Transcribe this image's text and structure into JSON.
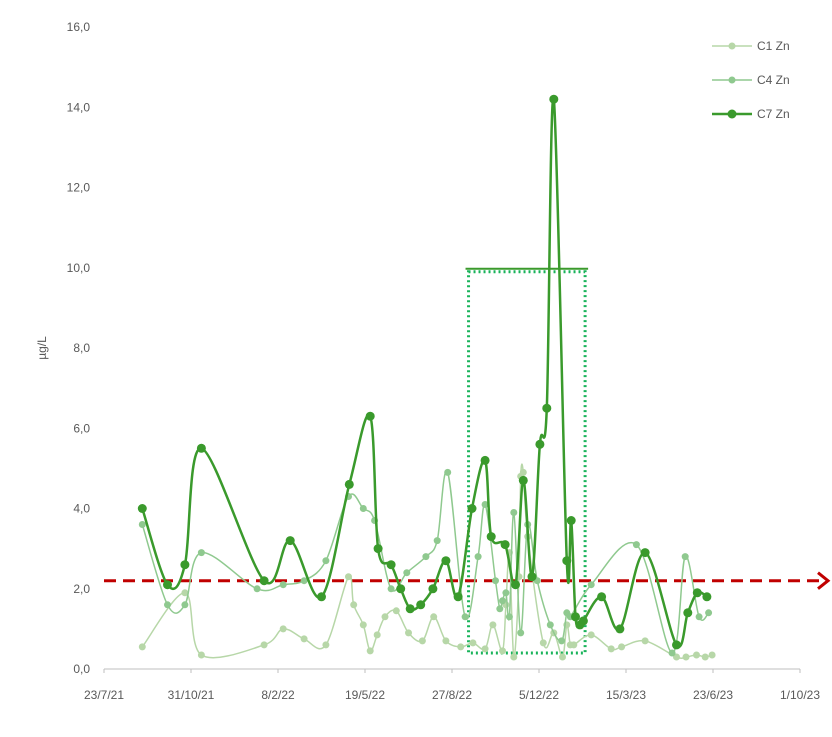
{
  "chart_data": {
    "type": "line",
    "ylabel": "µg/L",
    "ylim": [
      0,
      16
    ],
    "ytick_labels": [
      "0,0",
      "2,0",
      "4,0",
      "6,0",
      "8,0",
      "10,0",
      "12,0",
      "14,0",
      "16,0"
    ],
    "xlim": [
      "2021-07-23",
      "2023-10-01"
    ],
    "xtick_labels": [
      "23/7/21",
      "31/10/21",
      "8/2/22",
      "19/5/22",
      "27/8/22",
      "5/12/22",
      "15/3/23",
      "23/6/23",
      "1/10/23"
    ],
    "grid": false,
    "legend_position": "top-right",
    "threshold": 2.2,
    "highlight_box": {
      "x_start": "2022-09-15",
      "x_end": "2023-01-27",
      "y_low": 0.4,
      "y_high": 9.9
    },
    "series": [
      {
        "name": "C1 Zn",
        "color": "#b7d7a8",
        "x": [
          "2021-09-05",
          "2021-10-24",
          "2021-11-12",
          "2022-01-23",
          "2022-02-14",
          "2022-03-10",
          "2022-04-04",
          "2022-04-30",
          "2022-05-06",
          "2022-05-17",
          "2022-05-25",
          "2022-06-02",
          "2022-06-11",
          "2022-06-24",
          "2022-07-08",
          "2022-07-24",
          "2022-08-06",
          "2022-08-20",
          "2022-09-06",
          "2022-09-20",
          "2022-10-04",
          "2022-10-13",
          "2022-10-24",
          "2022-10-28",
          "2022-11-01",
          "2022-11-06",
          "2022-11-12",
          "2022-11-14",
          "2022-11-17",
          "2022-11-22",
          "2022-12-10",
          "2022-12-22",
          "2023-01-01",
          "2023-01-06",
          "2023-01-10",
          "2023-01-14",
          "2023-02-03",
          "2023-02-26",
          "2023-03-10",
          "2023-04-06",
          "2023-05-12",
          "2023-05-23",
          "2023-06-04",
          "2023-06-14",
          "2023-06-22"
        ],
        "values": [
          0.55,
          1.9,
          0.35,
          0.6,
          1.0,
          0.75,
          0.6,
          2.3,
          1.6,
          1.1,
          0.45,
          0.85,
          1.3,
          1.45,
          0.9,
          0.7,
          1.3,
          0.7,
          0.55,
          0.65,
          0.5,
          1.1,
          0.45,
          1.6,
          2.9,
          0.3,
          2.3,
          4.8,
          4.9,
          3.3,
          0.65,
          0.9,
          0.3,
          1.1,
          0.6,
          0.6,
          0.85,
          0.5,
          0.55,
          0.7,
          0.3,
          0.3,
          0.35,
          0.3,
          0.35
        ]
      },
      {
        "name": "C4 Zn",
        "color": "#8fc98f",
        "x": [
          "2021-09-05",
          "2021-10-04",
          "2021-10-24",
          "2021-11-12",
          "2022-01-15",
          "2022-02-14",
          "2022-03-10",
          "2022-04-04",
          "2022-04-30",
          "2022-05-17",
          "2022-05-30",
          "2022-06-18",
          "2022-07-06",
          "2022-07-28",
          "2022-08-10",
          "2022-08-22",
          "2022-09-11",
          "2022-09-26",
          "2022-10-04",
          "2022-10-16",
          "2022-10-21",
          "2022-10-24",
          "2022-10-28",
          "2022-11-01",
          "2022-11-06",
          "2022-11-14",
          "2022-11-22",
          "2022-12-03",
          "2022-12-18",
          "2022-12-31",
          "2023-01-06",
          "2023-01-10",
          "2023-02-03",
          "2023-03-27",
          "2023-05-07",
          "2023-05-22",
          "2023-06-07",
          "2023-06-18"
        ],
        "values": [
          3.6,
          1.6,
          1.6,
          2.9,
          2.0,
          2.1,
          2.2,
          2.7,
          4.3,
          4.0,
          3.7,
          2.0,
          2.4,
          2.8,
          3.2,
          4.9,
          1.3,
          2.8,
          4.1,
          2.2,
          1.5,
          1.7,
          1.9,
          1.3,
          3.9,
          0.9,
          3.6,
          2.2,
          1.1,
          0.7,
          1.4,
          1.3,
          2.1,
          3.1,
          0.4,
          2.8,
          1.3,
          1.4
        ]
      },
      {
        "name": "C7 Zn",
        "color": "#3a9a2c",
        "x": [
          "2021-09-05",
          "2021-10-04",
          "2021-10-24",
          "2021-11-12",
          "2022-01-23",
          "2022-02-22",
          "2022-03-30",
          "2022-05-01",
          "2022-05-25",
          "2022-06-03",
          "2022-06-18",
          "2022-06-29",
          "2022-07-10",
          "2022-07-22",
          "2022-08-05",
          "2022-08-20",
          "2022-09-03",
          "2022-09-19",
          "2022-10-04",
          "2022-10-11",
          "2022-10-27",
          "2022-11-08",
          "2022-11-17",
          "2022-11-27",
          "2022-12-06",
          "2022-12-14",
          "2022-12-22",
          "2023-01-06",
          "2023-01-11",
          "2023-01-16",
          "2023-01-21",
          "2023-01-25",
          "2023-02-15",
          "2023-03-08",
          "2023-04-06",
          "2023-05-12",
          "2023-05-25",
          "2023-06-05",
          "2023-06-16"
        ],
        "values": [
          4.0,
          2.1,
          2.6,
          5.5,
          2.2,
          3.2,
          1.8,
          4.6,
          6.3,
          3.0,
          2.6,
          2.0,
          1.5,
          1.6,
          2.0,
          2.7,
          1.8,
          4.0,
          5.2,
          3.3,
          3.1,
          2.1,
          4.7,
          2.3,
          5.6,
          6.5,
          14.2,
          2.7,
          3.7,
          1.3,
          1.1,
          1.2,
          1.8,
          1.0,
          2.9,
          0.6,
          1.4,
          1.9,
          1.8
        ]
      }
    ]
  }
}
